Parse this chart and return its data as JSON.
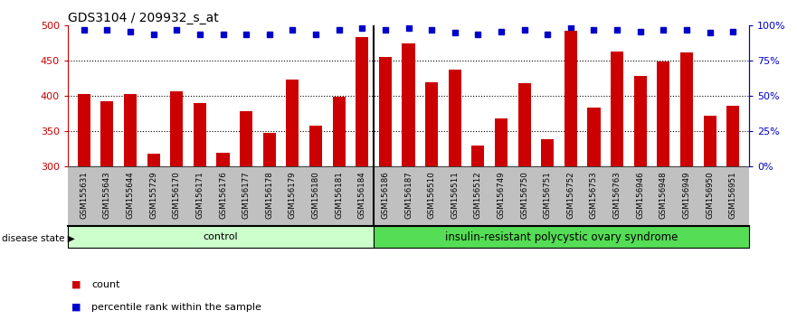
{
  "title": "GDS3104 / 209932_s_at",
  "categories": [
    "GSM155631",
    "GSM155643",
    "GSM155644",
    "GSM155729",
    "GSM156170",
    "GSM156171",
    "GSM156176",
    "GSM156177",
    "GSM156178",
    "GSM156179",
    "GSM156180",
    "GSM156181",
    "GSM156184",
    "GSM156186",
    "GSM156187",
    "GSM156510",
    "GSM156511",
    "GSM156512",
    "GSM156749",
    "GSM156750",
    "GSM156751",
    "GSM156752",
    "GSM156753",
    "GSM156763",
    "GSM156946",
    "GSM156948",
    "GSM156949",
    "GSM156950",
    "GSM156951"
  ],
  "bar_values": [
    403,
    392,
    403,
    318,
    407,
    390,
    319,
    379,
    347,
    424,
    358,
    399,
    484,
    456,
    475,
    420,
    437,
    330,
    368,
    418,
    338,
    493,
    383,
    463,
    428,
    449,
    462,
    372,
    386
  ],
  "percentile_values": [
    97,
    97,
    96,
    94,
    97,
    94,
    94,
    94,
    94,
    97,
    94,
    97,
    98,
    97,
    98,
    97,
    95,
    94,
    96,
    97,
    94,
    99,
    97,
    97,
    96,
    97,
    97,
    95,
    96
  ],
  "bar_color": "#cc0000",
  "percentile_color": "#0000cc",
  "ylim_left": [
    300,
    500
  ],
  "ylim_right": [
    0,
    100
  ],
  "yticks_left": [
    300,
    350,
    400,
    450,
    500
  ],
  "yticks_right": [
    0,
    25,
    50,
    75,
    100
  ],
  "control_count": 13,
  "control_label": "control",
  "disease_label": "insulin-resistant polycystic ovary syndrome",
  "group_label": "disease state",
  "legend_count_label": "count",
  "legend_pct_label": "percentile rank within the sample",
  "control_color": "#ccffcc",
  "disease_color": "#55dd55",
  "xtick_bg_color": "#c0c0c0",
  "plot_bg_color": "#ffffff",
  "dotted_line_color": "#000000",
  "title_fontsize": 10,
  "separator_color": "#000000"
}
